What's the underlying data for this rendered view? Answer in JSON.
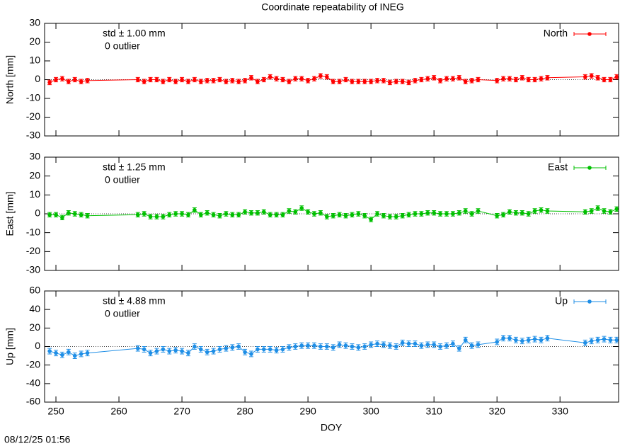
{
  "title": "Coordinate repeatability of INEG",
  "timestamp": "08/12/25 01:56",
  "chart_data": [
    {
      "type": "line",
      "ylabel": "North [mm]",
      "ylim": [
        -30,
        30
      ],
      "yticks": [
        -30,
        -20,
        -10,
        0,
        10,
        20,
        30
      ],
      "xlim": [
        248.2,
        339.3
      ],
      "xticks": [
        250,
        260,
        270,
        280,
        290,
        300,
        310,
        320,
        330
      ],
      "annotations": [
        "std ± 1.00 mm",
        "0 outlier"
      ],
      "x": [
        249,
        250,
        251,
        252,
        253,
        254,
        255,
        263,
        264,
        265,
        266,
        267,
        268,
        269,
        270,
        271,
        272,
        273,
        274,
        275,
        276,
        277,
        278,
        279,
        280,
        281,
        282,
        283,
        284,
        285,
        286,
        287,
        288,
        289,
        290,
        291,
        292,
        293,
        294,
        295,
        296,
        297,
        298,
        299,
        300,
        301,
        302,
        303,
        304,
        305,
        306,
        307,
        308,
        309,
        310,
        311,
        312,
        313,
        314,
        315,
        316,
        317,
        320,
        321,
        322,
        323,
        324,
        325,
        326,
        327,
        328,
        334,
        335,
        336,
        337,
        338,
        339
      ],
      "series": [
        {
          "name": "North",
          "color": "#ff0000",
          "error": 1.2,
          "values": [
            -1.5,
            0,
            0.5,
            -1,
            0,
            -1,
            -0.5,
            0,
            -1,
            0,
            0,
            -1,
            0,
            -1,
            0,
            -1,
            0,
            -1,
            -0.5,
            -0.5,
            0,
            -1,
            -0.5,
            -1,
            -0.5,
            1,
            -1,
            0,
            1.5,
            0.5,
            0,
            -1,
            0.5,
            0.5,
            -0.5,
            0.5,
            2,
            1.5,
            -1,
            -1,
            0,
            -1,
            -1,
            -1,
            -1,
            -0.5,
            -0.5,
            -1.5,
            -1,
            -1,
            -1.5,
            -0.5,
            0,
            0.5,
            1,
            -0.5,
            0.5,
            0.5,
            1,
            -1,
            -0.5,
            0,
            -0.5,
            0.5,
            0.5,
            0,
            1,
            0,
            0,
            0.5,
            1,
            1.5,
            2,
            1,
            0,
            0,
            1.5
          ]
        }
      ]
    },
    {
      "type": "line",
      "ylabel": "East [mm]",
      "ylim": [
        -30,
        30
      ],
      "yticks": [
        -30,
        -20,
        -10,
        0,
        10,
        20,
        30
      ],
      "xlim": [
        248.2,
        339.3
      ],
      "xticks": [
        250,
        260,
        270,
        280,
        290,
        300,
        310,
        320,
        330
      ],
      "annotations": [
        "std ± 1.25 mm",
        "0 outlier"
      ],
      "x": [
        249,
        250,
        251,
        252,
        253,
        254,
        255,
        263,
        264,
        265,
        266,
        267,
        268,
        269,
        270,
        271,
        272,
        273,
        274,
        275,
        276,
        277,
        278,
        279,
        280,
        281,
        282,
        283,
        284,
        285,
        286,
        287,
        288,
        289,
        290,
        291,
        292,
        293,
        294,
        295,
        296,
        297,
        298,
        299,
        300,
        301,
        302,
        303,
        304,
        305,
        306,
        307,
        308,
        309,
        310,
        311,
        312,
        313,
        314,
        315,
        316,
        317,
        320,
        321,
        322,
        323,
        324,
        325,
        326,
        327,
        328,
        334,
        335,
        336,
        337,
        338,
        339
      ],
      "series": [
        {
          "name": "East",
          "color": "#00c000",
          "error": 1.2,
          "values": [
            -0.5,
            -0.5,
            -2,
            0.5,
            0,
            -0.5,
            -1,
            -0.5,
            0,
            -1.5,
            -1.5,
            -1.5,
            -0.5,
            0,
            0,
            -0.5,
            2,
            -0.5,
            0.5,
            -0.5,
            -1,
            0,
            -0.5,
            -0.5,
            1,
            0.5,
            0.5,
            1,
            -0.5,
            -0.5,
            -0.5,
            1.5,
            1,
            3,
            1,
            0,
            0.5,
            -1.5,
            -1,
            -0.5,
            -1,
            -0.5,
            0,
            -1,
            -3,
            0,
            -1,
            -1.5,
            -1.5,
            -1,
            -0.5,
            0,
            0,
            0.5,
            0.5,
            0,
            0,
            0,
            0.5,
            1.5,
            0,
            1.5,
            -1,
            -0.5,
            1,
            0.5,
            0.5,
            0,
            1.5,
            2,
            1.5,
            1,
            1.5,
            3,
            1.5,
            1,
            2.5
          ]
        }
      ]
    },
    {
      "type": "line",
      "ylabel": "Up [mm]",
      "xlabel": "DOY",
      "ylim": [
        -60,
        60
      ],
      "yticks": [
        -60,
        -40,
        -20,
        0,
        20,
        40,
        60
      ],
      "xlim": [
        248.2,
        339.3
      ],
      "xticks": [
        250,
        260,
        270,
        280,
        290,
        300,
        310,
        320,
        330
      ],
      "annotations": [
        "std ± 4.88 mm",
        "0 outlier"
      ],
      "x": [
        249,
        250,
        251,
        252,
        253,
        254,
        255,
        263,
        264,
        265,
        266,
        267,
        268,
        269,
        270,
        271,
        272,
        273,
        274,
        275,
        276,
        277,
        278,
        279,
        280,
        281,
        282,
        283,
        284,
        285,
        286,
        287,
        288,
        289,
        290,
        291,
        292,
        293,
        294,
        295,
        296,
        297,
        298,
        299,
        300,
        301,
        302,
        303,
        304,
        305,
        306,
        307,
        308,
        309,
        310,
        311,
        312,
        313,
        314,
        315,
        316,
        317,
        320,
        321,
        322,
        323,
        324,
        325,
        326,
        327,
        328,
        334,
        335,
        336,
        337,
        338,
        339
      ],
      "series": [
        {
          "name": "Up",
          "color": "#1e8ee6",
          "error": 3,
          "values": [
            -5,
            -7,
            -9,
            -6,
            -10,
            -8,
            -7,
            -2,
            -3,
            -7,
            -5,
            -3,
            -5,
            -4,
            -5,
            -7,
            0,
            -3,
            -6,
            -5,
            -3,
            -2,
            -1,
            0,
            -6,
            -8,
            -3,
            -3,
            -3,
            -4,
            -3,
            -1,
            0,
            1,
            1,
            1,
            0,
            0,
            -1,
            2,
            1,
            0,
            -1,
            0,
            2,
            3,
            2,
            1,
            0,
            4,
            3,
            3,
            1,
            2,
            2,
            0,
            1,
            3,
            -2,
            7,
            1,
            2,
            5,
            9,
            9,
            7,
            6,
            7,
            8,
            7,
            9,
            4,
            6,
            7,
            8,
            7,
            7
          ]
        }
      ]
    }
  ]
}
